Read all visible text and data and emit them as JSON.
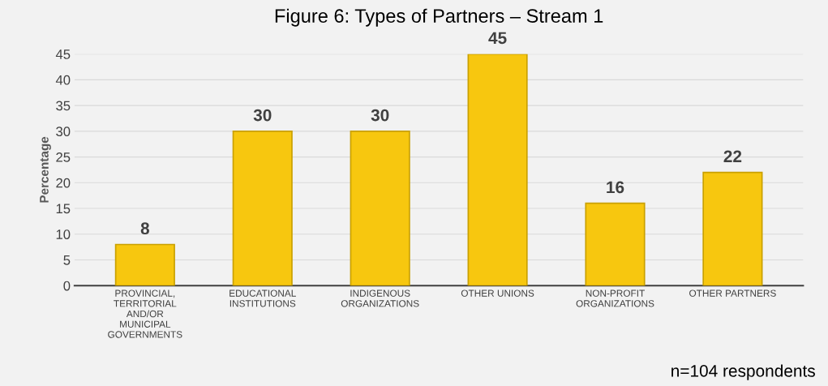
{
  "chart_data": {
    "type": "bar",
    "title": "Figure 6: Types of Partners – Stream 1",
    "ylabel": "Percentage",
    "categories": [
      "PROVINCIAL,\nTERRITORIAL\nAND/OR\nMUNICIPAL\nGOVERNMENTS",
      "EDUCATIONAL\nINSTITUTIONS",
      "INDIGENOUS\nORGANIZATIONS",
      "OTHER UNIONS",
      "NON-PROFIT\nORGANIZATIONS",
      "OTHER PARTNERS"
    ],
    "values": [
      8,
      30,
      30,
      45,
      16,
      22
    ],
    "color": "#f7c70f",
    "ylim": [
      0,
      45
    ],
    "yticks": [
      0,
      5,
      10,
      15,
      20,
      25,
      30,
      35,
      40,
      45
    ],
    "grid": "y",
    "data_labels": true,
    "annotations": [
      "n=104 respondents"
    ]
  }
}
